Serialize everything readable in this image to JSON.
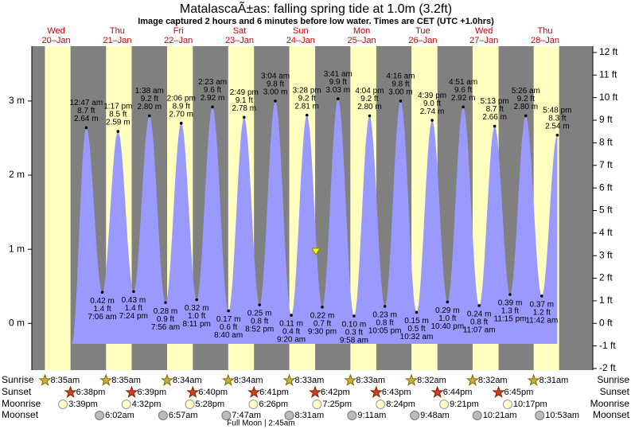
{
  "chart_data": {
    "type": "tide",
    "title": "MatalascaÃ±as: falling  spring tide at 1.0m (3.2ft)",
    "subtitle": "Image captured 2 hours and 6 minutes before low water. Times are CET (UTC +1.0hrs)",
    "ylim": [
      -0.63,
      3.74
    ],
    "yticks": [
      {
        "value": 0,
        "label": "0 m"
      },
      {
        "value": 1,
        "label": "1 m"
      },
      {
        "value": 2,
        "label": "2 m"
      },
      {
        "value": 3,
        "label": "3 m"
      }
    ],
    "y2lim": [
      -2.07,
      12.28
    ],
    "y2ticks": [
      {
        "value": -2,
        "label": "-2 ft"
      },
      {
        "value": -1,
        "label": "-1 ft"
      },
      {
        "value": 0,
        "label": "0 ft"
      },
      {
        "value": 1,
        "label": "1 ft"
      },
      {
        "value": 2,
        "label": "2 ft"
      },
      {
        "value": 3,
        "label": "3 ft"
      },
      {
        "value": 4,
        "label": "4 ft"
      },
      {
        "value": 5,
        "label": "5 ft"
      },
      {
        "value": 6,
        "label": "6 ft"
      },
      {
        "value": 7,
        "label": "7 ft"
      },
      {
        "value": 8,
        "label": "8 ft"
      },
      {
        "value": 9,
        "label": "9 ft"
      },
      {
        "value": 10,
        "label": "10 ft"
      },
      {
        "value": 11,
        "label": "11 ft"
      },
      {
        "value": 12,
        "label": "12 ft"
      }
    ],
    "days": [
      {
        "weekday": "Wed",
        "date": "20–Jan"
      },
      {
        "weekday": "Thu",
        "date": "21–Jan",
        "tides": {
          "times": [
            "12:47 am",
            "7:06 am",
            "1:17 pm",
            "7:24 pm"
          ],
          "values": [
            2.64,
            0.42,
            2.59,
            0.43
          ],
          "value_labels": [
            "2.64 m",
            "0.42 m",
            "2.59 m",
            "0.43 m"
          ],
          "ft_labels": [
            "8.7 ft",
            "1.4 ft",
            "8.5 ft",
            "1.4 ft"
          ]
        }
      },
      {
        "weekday": "Fri",
        "date": "22–Jan",
        "tides": {
          "times": [
            "1:38 am",
            "7:56 am",
            "2:06 pm",
            "8:11 pm"
          ],
          "values": [
            2.8,
            0.28,
            2.7,
            0.32
          ],
          "value_labels": [
            "2.80 m",
            "0.28 m",
            "2.70 m",
            "0.32 m"
          ],
          "ft_labels": [
            "9.2 ft",
            "0.9 ft",
            "8.9 ft",
            "1.0 ft"
          ]
        }
      },
      {
        "weekday": "Sat",
        "date": "23–Jan",
        "tides": {
          "times": [
            "2:23 am",
            "8:40 am",
            "2:49 pm",
            "8:52 pm"
          ],
          "values": [
            2.92,
            0.17,
            2.78,
            0.25
          ],
          "value_labels": [
            "2.92 m",
            "0.17 m",
            "2.78 m",
            "0.25 m"
          ],
          "ft_labels": [
            "9.6 ft",
            "0.6 ft",
            "9.1 ft",
            "0.8 ft"
          ]
        }
      },
      {
        "weekday": "Sun",
        "date": "24–Jan",
        "tides": {
          "times": [
            "3:04 am",
            "9:20 am",
            "3:28 pm",
            "9:30 pm"
          ],
          "values": [
            3.0,
            0.11,
            2.81,
            0.22
          ],
          "value_labels": [
            "3.00 m",
            "0.11 m",
            "2.81 m",
            "0.22 m"
          ],
          "ft_labels": [
            "9.8 ft",
            "0.4 ft",
            "9.2 ft",
            "0.7 ft"
          ]
        }
      },
      {
        "weekday": "Mon",
        "date": "25–Jan",
        "tides": {
          "times": [
            "3:41 am",
            "9:58 am",
            "4:04 pm",
            "10:05 pm"
          ],
          "values": [
            3.03,
            0.1,
            2.8,
            0.23
          ],
          "value_labels": [
            "3.03 m",
            "0.10 m",
            "2.80 m",
            "0.23 m"
          ],
          "ft_labels": [
            "9.9 ft",
            "0.3 ft",
            "9.2 ft",
            "0.8 ft"
          ]
        }
      },
      {
        "weekday": "Tue",
        "date": "26–Jan",
        "tides": {
          "times": [
            "4:16 am",
            "10:32 am",
            "4:39 pm",
            "10:40 pm"
          ],
          "values": [
            3.0,
            0.15,
            2.74,
            0.29
          ],
          "value_labels": [
            "3.00 m",
            "0.15 m",
            "2.74 m",
            "0.29 m"
          ],
          "ft_labels": [
            "9.8 ft",
            "0.5 ft",
            "9.0 ft",
            "1.0 ft"
          ]
        }
      },
      {
        "weekday": "Wed",
        "date": "27–Jan",
        "tides": {
          "times": [
            "4:51 am",
            "11:07 am",
            "5:13 pm",
            "11:15 pm"
          ],
          "values": [
            2.92,
            0.24,
            2.66,
            0.39
          ],
          "value_labels": [
            "2.92 m",
            "0.24 m",
            "2.66 m",
            "0.39 m"
          ],
          "ft_labels": [
            "9.6 ft",
            "0.8 ft",
            "8.7 ft",
            "1.3 ft"
          ]
        }
      },
      {
        "weekday": "Thu",
        "date": "28–Jan",
        "tides": {
          "times": [
            "5:26 am",
            "11:42 am",
            "5:48 pm"
          ],
          "values": [
            2.8,
            0.37,
            2.54
          ],
          "value_labels": [
            "2.80 m",
            "0.37 m",
            "2.54 m"
          ],
          "ft_labels": [
            "9.2 ft",
            "1.2 ft",
            "8.3 ft"
          ]
        }
      }
    ],
    "rows": [
      {
        "label": "Sunrise",
        "times": [
          "8:35am",
          "8:35am",
          "8:34am",
          "8:34am",
          "8:33am",
          "8:33am",
          "8:32am",
          "8:32am",
          "8:31am"
        ]
      },
      {
        "label": "Sunset",
        "times": [
          "6:38pm",
          "6:39pm",
          "6:40pm",
          "6:41pm",
          "6:42pm",
          "6:43pm",
          "6:44pm",
          "6:45pm",
          null
        ]
      },
      {
        "label": "Moonrise",
        "times": [
          "3:39pm",
          "4:32pm",
          "5:28pm",
          "6:26pm",
          "7:25pm",
          "8:24pm",
          "9:21pm",
          "10:17pm",
          null
        ]
      },
      {
        "label": "Moonset",
        "times": [
          null,
          "6:02am",
          "6:57am",
          "7:47am",
          "8:31am",
          "9:11am",
          "9:48am",
          "10:21am",
          "10:53am"
        ]
      }
    ],
    "moon_phase": "Full Moon | 2:45am"
  }
}
